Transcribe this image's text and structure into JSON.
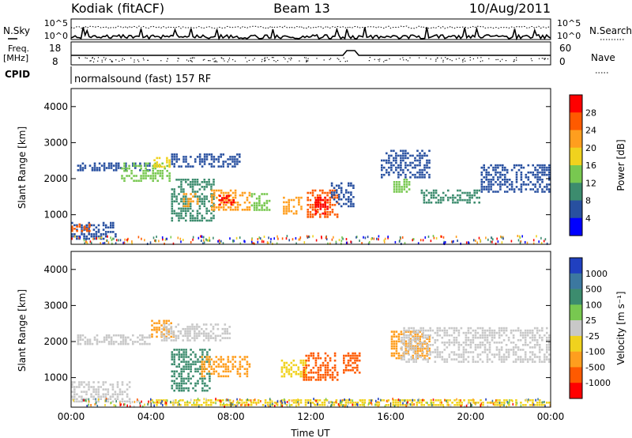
{
  "header": {
    "station": "Kodiak (fitACF)",
    "beam": "Beam 13",
    "date": "10/Aug/2011"
  },
  "top_panels": {
    "nsky_label": "N.Sky",
    "nsky_ticks": [
      "10^5",
      "10^0"
    ],
    "nsearch_label": "N.Search",
    "nsearch_ticks": [
      "10^5",
      "10^0"
    ],
    "freq_label": "Freq.",
    "freq_unit": "[MHz]",
    "freq_ticks": [
      "18",
      "8"
    ],
    "nave_label": "Nave",
    "nave_ticks": [
      "60",
      "0"
    ],
    "cpid_label": "CPID",
    "cpid_text": "normalsound (fast) 157 RF"
  },
  "chart_data": [
    {
      "type": "heatmap",
      "name": "power",
      "ylabel": "Slant Range [km]",
      "xlabel": "",
      "ylim": [
        180,
        4500
      ],
      "xlim": [
        0,
        24
      ],
      "yticks": [
        "1000",
        "2000",
        "3000",
        "4000"
      ],
      "colorbar": {
        "label": "Power [dB]",
        "ticks": [
          "28",
          "24",
          "20",
          "16",
          "12",
          "8",
          "4"
        ],
        "colors": [
          "#ff0000",
          "#ff5a00",
          "#ff9e1e",
          "#f0d21e",
          "#78c850",
          "#3c8c6e",
          "#2850a0",
          "#0000ff"
        ]
      },
      "echo_regions": [
        {
          "t": [
            0.0,
            2.3
          ],
          "r": [
            300,
            800
          ],
          "color": "#2850a0"
        },
        {
          "t": [
            0.0,
            1.0
          ],
          "r": [
            520,
            760
          ],
          "color": "#ff5a00"
        },
        {
          "t": [
            0.3,
            4.0
          ],
          "r": [
            2200,
            2450
          ],
          "color": "#2850a0"
        },
        {
          "t": [
            2.5,
            5.0
          ],
          "r": [
            1900,
            2450
          ],
          "color": "#78c850"
        },
        {
          "t": [
            4.0,
            5.0
          ],
          "r": [
            2300,
            2600
          ],
          "color": "#f0d21e"
        },
        {
          "t": [
            5.0,
            8.5
          ],
          "r": [
            2300,
            2700
          ],
          "color": "#2850a0"
        },
        {
          "t": [
            5.0,
            7.2
          ],
          "r": [
            800,
            2000
          ],
          "color": "#3c8c6e"
        },
        {
          "t": [
            5.6,
            6.4
          ],
          "r": [
            1200,
            1600
          ],
          "color": "#ff9e1e"
        },
        {
          "t": [
            7.0,
            9.0
          ],
          "r": [
            1100,
            1700
          ],
          "color": "#ff9e1e"
        },
        {
          "t": [
            7.4,
            8.2
          ],
          "r": [
            1250,
            1550
          ],
          "color": "#ff0000"
        },
        {
          "t": [
            9.0,
            10.0
          ],
          "r": [
            1100,
            1600
          ],
          "color": "#78c850"
        },
        {
          "t": [
            10.6,
            11.6
          ],
          "r": [
            1000,
            1500
          ],
          "color": "#ff9e1e"
        },
        {
          "t": [
            11.8,
            13.4
          ],
          "r": [
            900,
            1700
          ],
          "color": "#ff5a00"
        },
        {
          "t": [
            12.2,
            12.9
          ],
          "r": [
            1000,
            1500
          ],
          "color": "#ff0000"
        },
        {
          "t": [
            13.0,
            14.2
          ],
          "r": [
            1200,
            1900
          ],
          "color": "#2850a0"
        },
        {
          "t": [
            15.5,
            18.0
          ],
          "r": [
            2000,
            2800
          ],
          "color": "#2850a0"
        },
        {
          "t": [
            16.0,
            17.0
          ],
          "r": [
            1600,
            2000
          ],
          "color": "#78c850"
        },
        {
          "t": [
            17.5,
            20.5
          ],
          "r": [
            1300,
            1700
          ],
          "color": "#3c8c6e"
        },
        {
          "t": [
            20.5,
            24.0
          ],
          "r": [
            1600,
            2400
          ],
          "color": "#2850a0"
        }
      ]
    },
    {
      "type": "heatmap",
      "name": "velocity",
      "ylabel": "Slant Range [km]",
      "xlabel": "Time UT",
      "ylim": [
        180,
        4500
      ],
      "xlim": [
        0,
        24
      ],
      "yticks": [
        "1000",
        "2000",
        "3000",
        "4000"
      ],
      "xticks": [
        "00:00",
        "04:00",
        "08:00",
        "12:00",
        "16:00",
        "20:00",
        "00:00"
      ],
      "colorbar": {
        "label": "Velocity [m s⁻¹]",
        "ticks": [
          "1000",
          "500",
          "100",
          "25",
          "-25",
          "-100",
          "-500",
          "-1000"
        ],
        "colors": [
          "#2040c0",
          "#3c78a0",
          "#3c8c6e",
          "#78c850",
          "#c8c8c8",
          "#f0d21e",
          "#ff9e1e",
          "#ff5a00",
          "#ff0000"
        ]
      },
      "echo_regions": [
        {
          "t": [
            0.0,
            3.0
          ],
          "r": [
            300,
            900
          ],
          "color": "#c8c8c8"
        },
        {
          "t": [
            0.3,
            4.0
          ],
          "r": [
            1900,
            2200
          ],
          "color": "#c8c8c8"
        },
        {
          "t": [
            4.0,
            5.2
          ],
          "r": [
            2100,
            2600
          ],
          "color": "#ff9e1e"
        },
        {
          "t": [
            4.5,
            8.0
          ],
          "r": [
            2000,
            2500
          ],
          "color": "#c8c8c8"
        },
        {
          "t": [
            5.0,
            7.0
          ],
          "r": [
            600,
            1800
          ],
          "color": "#3c8c6e"
        },
        {
          "t": [
            6.5,
            9.0
          ],
          "r": [
            1000,
            1600
          ],
          "color": "#ff9e1e"
        },
        {
          "t": [
            10.5,
            11.8
          ],
          "r": [
            1000,
            1500
          ],
          "color": "#f0d21e"
        },
        {
          "t": [
            11.6,
            13.4
          ],
          "r": [
            900,
            1700
          ],
          "color": "#ff5a00"
        },
        {
          "t": [
            13.6,
            14.5
          ],
          "r": [
            1100,
            1700
          ],
          "color": "#ff5a00"
        },
        {
          "t": [
            16.0,
            18.0
          ],
          "r": [
            1500,
            2300
          ],
          "color": "#ff9e1e"
        },
        {
          "t": [
            16.5,
            24.0
          ],
          "r": [
            1400,
            2400
          ],
          "color": "#c8c8c8"
        },
        {
          "t": [
            4.0,
            24.0
          ],
          "r": [
            200,
            400
          ],
          "color": "#f0d21e"
        }
      ]
    }
  ]
}
